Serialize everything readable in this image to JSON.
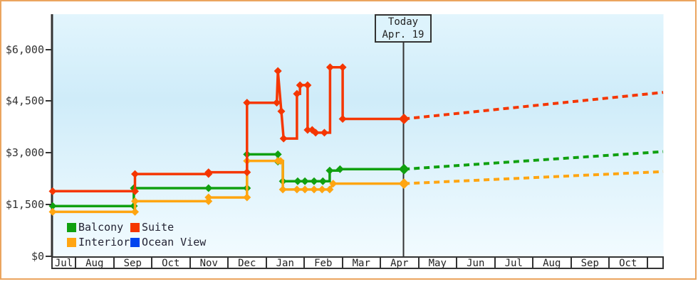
{
  "chart_data": {
    "type": "line",
    "ylim": [
      0,
      6300
    ],
    "grid": false,
    "legend_position": "bottom-left",
    "y_ticks": [
      {
        "label": "$6,000",
        "value": 6000
      },
      {
        "label": "$4,500",
        "value": 4500
      },
      {
        "label": "$3,000",
        "value": 3000
      },
      {
        "label": "$1,500",
        "value": 1500
      },
      {
        "label": "$0",
        "value": 0
      }
    ],
    "months": [
      "Jul",
      "Aug",
      "Sep",
      "Oct",
      "Nov",
      "Dec",
      "Jan",
      "Feb",
      "Mar",
      "Apr",
      "May",
      "Jun",
      "Jul",
      "Aug",
      "Sep",
      "Oct"
    ],
    "x_unit": "month index from first July + day fraction",
    "today_t": 9.64,
    "series": [
      {
        "name": "Balcony",
        "color": "#10a010",
        "points": [
          [
            0.42,
            1450,
            1
          ],
          [
            2.55,
            1450,
            1
          ],
          [
            2.55,
            1970,
            1
          ],
          [
            4.51,
            1970,
            1
          ],
          [
            5.52,
            1970,
            1
          ],
          [
            5.52,
            2950,
            1
          ],
          [
            6.33,
            2950,
            1
          ],
          [
            6.33,
            2740,
            1
          ],
          [
            6.46,
            2740,
            0
          ],
          [
            6.46,
            2170,
            1
          ],
          [
            6.85,
            2170,
            1
          ],
          [
            7.04,
            2170,
            1
          ],
          [
            7.28,
            2170,
            1
          ],
          [
            7.51,
            2170,
            1
          ],
          [
            7.69,
            2170,
            0
          ],
          [
            7.69,
            2480,
            1
          ],
          [
            7.96,
            2480,
            0
          ],
          [
            7.96,
            2520,
            1
          ],
          [
            9.64,
            2520,
            1
          ]
        ],
        "projection": [
          [
            9.64,
            2520
          ],
          [
            16.44,
            3030
          ]
        ]
      },
      {
        "name": "Suite",
        "color": "#f53600",
        "points": [
          [
            0.42,
            1880,
            1
          ],
          [
            2.58,
            1880,
            1
          ],
          [
            2.58,
            2380,
            1
          ],
          [
            4.51,
            2380,
            1
          ],
          [
            4.51,
            2430,
            1
          ],
          [
            5.52,
            2430,
            1
          ],
          [
            5.52,
            4450,
            1
          ],
          [
            6.3,
            4450,
            1
          ],
          [
            6.33,
            5370,
            1
          ],
          [
            6.42,
            4200,
            1
          ],
          [
            6.48,
            3410,
            1
          ],
          [
            6.83,
            3410,
            0
          ],
          [
            6.83,
            4710,
            1
          ],
          [
            6.91,
            4710,
            0
          ],
          [
            6.91,
            4960,
            1
          ],
          [
            7.11,
            4960,
            1
          ],
          [
            7.11,
            3660,
            1
          ],
          [
            7.23,
            3660,
            1
          ],
          [
            7.32,
            3580,
            1
          ],
          [
            7.55,
            3580,
            1
          ],
          [
            7.7,
            3580,
            0
          ],
          [
            7.7,
            5480,
            1
          ],
          [
            8.03,
            5480,
            1
          ],
          [
            8.03,
            3980,
            1
          ],
          [
            9.64,
            3980,
            1
          ]
        ],
        "projection": [
          [
            9.64,
            3980
          ],
          [
            16.44,
            4750
          ]
        ]
      },
      {
        "name": "Interior",
        "color": "#ffa511",
        "points": [
          [
            0.42,
            1280,
            1
          ],
          [
            2.58,
            1280,
            1
          ],
          [
            2.58,
            1590,
            1
          ],
          [
            4.51,
            1590,
            1
          ],
          [
            4.51,
            1700,
            1
          ],
          [
            5.52,
            1700,
            1
          ],
          [
            5.52,
            2760,
            1
          ],
          [
            6.33,
            2760,
            1
          ],
          [
            6.4,
            2760,
            1
          ],
          [
            6.46,
            2760,
            0
          ],
          [
            6.46,
            1930,
            1
          ],
          [
            6.83,
            1930,
            1
          ],
          [
            7.04,
            1930,
            1
          ],
          [
            7.28,
            1930,
            1
          ],
          [
            7.49,
            1930,
            1
          ],
          [
            7.69,
            1930,
            1
          ],
          [
            7.78,
            2100,
            1
          ],
          [
            9.64,
            2100,
            1
          ]
        ],
        "projection": [
          [
            9.64,
            2100
          ],
          [
            16.44,
            2450
          ]
        ]
      },
      {
        "name": "Ocean View",
        "color": "#0044ee",
        "points": [],
        "projection": []
      }
    ]
  },
  "today_box": {
    "line1": "Today",
    "line2": "Apr. 19"
  },
  "colors": {
    "frame_border": "#eba55f",
    "axis": "#333333",
    "today_line": "#333333",
    "plot_bg_top": "#e2f5fd",
    "plot_bg_mid": "#cfecf9",
    "plot_bg_bottom": "#f2fbff"
  }
}
